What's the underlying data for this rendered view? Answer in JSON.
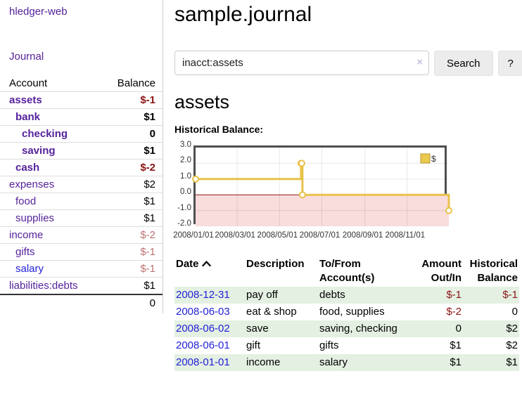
{
  "app": {
    "title": "hledger-web"
  },
  "sidebar": {
    "journal_label": "Journal",
    "accounts_table": {
      "headers": {
        "account": "Account",
        "balance": "Balance"
      },
      "rows": [
        {
          "label": "assets",
          "balance": "$-1",
          "indent": 1,
          "active": true,
          "balance_style": "neg-strong"
        },
        {
          "label": "bank",
          "balance": "$1",
          "indent": 2,
          "active": true,
          "balance_style": ""
        },
        {
          "label": "checking",
          "balance": "0",
          "indent": 3,
          "active": true,
          "balance_style": ""
        },
        {
          "label": "saving",
          "balance": "$1",
          "indent": 3,
          "active": true,
          "balance_style": ""
        },
        {
          "label": "cash",
          "balance": "$-2",
          "indent": 2,
          "active": true,
          "balance_style": "neg-strong"
        },
        {
          "label": "expenses",
          "balance": "$2",
          "indent": 1,
          "active": false,
          "balance_style": ""
        },
        {
          "label": "food",
          "balance": "$1",
          "indent": 2,
          "active": false,
          "balance_style": ""
        },
        {
          "label": "supplies",
          "balance": "$1",
          "indent": 2,
          "active": false,
          "balance_style": ""
        },
        {
          "label": "income",
          "balance": "$-2",
          "indent": 1,
          "active": false,
          "balance_style": "neg-soft"
        },
        {
          "label": "gifts",
          "balance": "$-1",
          "indent": 2,
          "active": false,
          "balance_style": "neg-soft"
        },
        {
          "label": "salary",
          "balance": "$-1",
          "indent": 2,
          "active": false,
          "balance_style": "neg-soft",
          "link_style": "unvisited"
        },
        {
          "label": "liabilities:debts",
          "balance": "$1",
          "indent": 1,
          "active": false,
          "balance_style": ""
        }
      ],
      "total": "0"
    }
  },
  "main": {
    "title": "sample.journal",
    "search": {
      "value": "inacct:assets",
      "clear_icon": "×",
      "button_label": "Search",
      "help_label": "?"
    },
    "account_heading": "assets",
    "chart_label": "Historical Balance:"
  },
  "chart_data": {
    "type": "line",
    "step": true,
    "title": "Historical Balance:",
    "series": [
      {
        "name": "$",
        "color": "#e8c24a",
        "points": [
          [
            "2008-01-01",
            1
          ],
          [
            "2008-06-01",
            2
          ],
          [
            "2008-06-02",
            2
          ],
          [
            "2008-06-03",
            0
          ],
          [
            "2008-12-31",
            -1
          ]
        ]
      }
    ],
    "ylim": [
      -2.0,
      3.0
    ],
    "yticks": [
      3.0,
      2.0,
      1.0,
      0.0,
      -1.0,
      -2.0
    ],
    "xticks": [
      "2008/01/01",
      "2008/03/01",
      "2008/05/01",
      "2008/07/01",
      "2008/09/01",
      "2008/11/01"
    ],
    "x_range": [
      "2008-01-01",
      "2008-12-31"
    ],
    "legend": {
      "label": "$",
      "position": "top-right",
      "swatch_fill": "#ecca4e",
      "swatch_border": "#b6952c"
    },
    "negative_region_color": "#f9dcdc",
    "zero_line_color": "#8b1a1a",
    "grid": true
  },
  "register_table": {
    "headers": [
      "Date",
      "Description",
      "To/From Account(s)",
      "Amount Out/In",
      "Historical Balance"
    ],
    "sort": {
      "column": "Date",
      "direction": "ascending"
    },
    "rows": [
      {
        "date": "2008-12-31",
        "description": "pay off",
        "accounts": "debts",
        "amount": "$-1",
        "amount_negative": true,
        "balance": "$-1",
        "balance_negative": true,
        "highlight": true
      },
      {
        "date": "2008-06-03",
        "description": "eat & shop",
        "accounts": "food, supplies",
        "amount": "$-2",
        "amount_negative": true,
        "balance": "0",
        "balance_negative": false,
        "highlight": false
      },
      {
        "date": "2008-06-02",
        "description": "save",
        "accounts": "saving, checking",
        "amount": "0",
        "amount_negative": false,
        "balance": "$2",
        "balance_negative": false,
        "highlight": true
      },
      {
        "date": "2008-06-01",
        "description": "gift",
        "accounts": "gifts",
        "amount": "$1",
        "amount_negative": false,
        "balance": "$2",
        "balance_negative": false,
        "highlight": false
      },
      {
        "date": "2008-01-01",
        "description": "income",
        "accounts": "salary",
        "amount": "$1",
        "amount_negative": false,
        "balance": "$1",
        "balance_negative": false,
        "highlight": true
      }
    ]
  }
}
